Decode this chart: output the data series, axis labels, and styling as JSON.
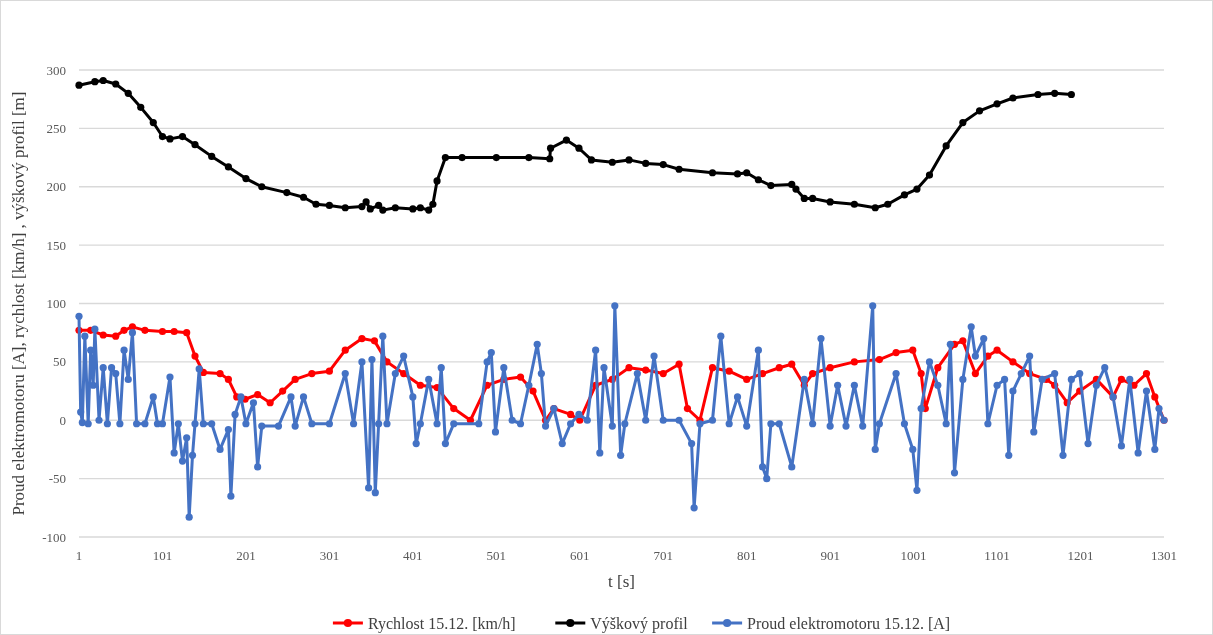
{
  "chart_data": {
    "type": "line",
    "xlabel": "t [s]",
    "ylabel": "Proud elektromotoru [A], rychlost [km/h] , výškový profil  [m]",
    "xlim": [
      1,
      1301
    ],
    "xticks": [
      1,
      101,
      201,
      301,
      401,
      501,
      601,
      701,
      801,
      901,
      1001,
      1101,
      1201,
      1301
    ],
    "ylim": [
      -100,
      300
    ],
    "yticks": [
      -100,
      -50,
      0,
      50,
      100,
      150,
      200,
      250,
      300
    ],
    "grid": "y",
    "legend": "bottom",
    "marker": "circle",
    "line_style": "solid",
    "series": [
      {
        "name": "Rychlost 15.12. [km/h]",
        "color": "#ff0000",
        "x": [
          1,
          15,
          30,
          45,
          55,
          65,
          80,
          101,
          115,
          130,
          140,
          150,
          170,
          180,
          190,
          200,
          215,
          230,
          245,
          260,
          280,
          301,
          320,
          340,
          355,
          370,
          390,
          410,
          430,
          450,
          470,
          490,
          510,
          530,
          545,
          560,
          570,
          590,
          601,
          620,
          640,
          660,
          680,
          701,
          720,
          730,
          745,
          760,
          780,
          801,
          820,
          840,
          855,
          870,
          880,
          901,
          930,
          960,
          980,
          1000,
          1010,
          1015,
          1030,
          1050,
          1060,
          1075,
          1090,
          1101,
          1120,
          1140,
          1160,
          1170,
          1185,
          1200,
          1220,
          1240,
          1250,
          1265,
          1280,
          1290,
          1301
        ],
        "values": [
          77,
          77,
          73,
          72,
          77,
          80,
          77,
          76,
          76,
          75,
          55,
          41,
          40,
          35,
          20,
          18,
          22,
          15,
          25,
          35,
          40,
          42,
          60,
          70,
          68,
          50,
          40,
          30,
          28,
          10,
          0,
          30,
          35,
          37,
          25,
          0,
          10,
          5,
          0,
          30,
          35,
          45,
          43,
          40,
          48,
          10,
          0,
          45,
          42,
          35,
          40,
          45,
          48,
          30,
          40,
          45,
          50,
          52,
          58,
          60,
          40,
          10,
          45,
          65,
          68,
          40,
          55,
          60,
          50,
          40,
          35,
          30,
          15,
          25,
          35,
          20,
          35,
          30,
          40,
          20,
          0
        ]
      },
      {
        "name": "Výškový profil",
        "color": "#000000",
        "x": [
          1,
          20,
          30,
          45,
          60,
          75,
          90,
          101,
          110,
          125,
          140,
          160,
          180,
          201,
          220,
          250,
          270,
          285,
          301,
          320,
          340,
          345,
          350,
          360,
          365,
          380,
          401,
          410,
          420,
          425,
          430,
          440,
          460,
          501,
          540,
          565,
          566,
          585,
          600,
          615,
          640,
          660,
          680,
          701,
          720,
          760,
          790,
          801,
          815,
          830,
          855,
          860,
          870,
          880,
          901,
          930,
          955,
          970,
          990,
          1005,
          1020,
          1040,
          1060,
          1080,
          1101,
          1120,
          1150,
          1170,
          1190
        ],
        "values": [
          287,
          290,
          291,
          288,
          280,
          268,
          255,
          243,
          241,
          243,
          236,
          226,
          217,
          207,
          200,
          195,
          191,
          185,
          184,
          182,
          183,
          187,
          181,
          184,
          180,
          182,
          181,
          182,
          180,
          185,
          205,
          225,
          225,
          225,
          225,
          224,
          233,
          240,
          233,
          223,
          221,
          223,
          220,
          219,
          215,
          212,
          211,
          212,
          206,
          201,
          202,
          198,
          190,
          190,
          187,
          185,
          182,
          185,
          193,
          198,
          210,
          235,
          255,
          265,
          271,
          276,
          279,
          280,
          279
        ]
      },
      {
        "name": "Proud elektromotoru 15.12. [A]",
        "color": "#4472c4",
        "x": [
          1,
          3,
          5,
          8,
          12,
          15,
          18,
          20,
          25,
          30,
          35,
          40,
          45,
          50,
          55,
          60,
          65,
          70,
          80,
          90,
          95,
          101,
          110,
          115,
          120,
          125,
          130,
          133,
          137,
          140,
          145,
          150,
          160,
          170,
          180,
          183,
          188,
          195,
          201,
          210,
          215,
          220,
          240,
          255,
          260,
          270,
          280,
          301,
          320,
          330,
          340,
          348,
          352,
          356,
          360,
          365,
          370,
          380,
          390,
          401,
          405,
          410,
          420,
          430,
          435,
          440,
          450,
          480,
          490,
          495,
          500,
          510,
          520,
          530,
          540,
          550,
          555,
          560,
          570,
          580,
          590,
          600,
          610,
          620,
          625,
          630,
          640,
          643,
          650,
          655,
          670,
          680,
          690,
          701,
          720,
          735,
          738,
          745,
          760,
          770,
          780,
          790,
          801,
          815,
          820,
          825,
          830,
          840,
          855,
          870,
          880,
          890,
          901,
          910,
          920,
          930,
          940,
          952,
          955,
          960,
          980,
          990,
          1000,
          1005,
          1010,
          1020,
          1030,
          1040,
          1045,
          1050,
          1060,
          1070,
          1075,
          1085,
          1090,
          1101,
          1110,
          1115,
          1120,
          1130,
          1140,
          1145,
          1155,
          1170,
          1180,
          1190,
          1200,
          1210,
          1220,
          1230,
          1240,
          1250,
          1260,
          1270,
          1280,
          1290,
          1295,
          1301
        ],
        "values": [
          89,
          7,
          -2,
          72,
          -3,
          60,
          30,
          78,
          0,
          45,
          -3,
          45,
          40,
          -3,
          60,
          35,
          75,
          -3,
          -3,
          20,
          -3,
          -3,
          37,
          -28,
          -3,
          -35,
          -15,
          -83,
          -30,
          -3,
          44,
          -3,
          -3,
          -25,
          -8,
          -65,
          5,
          20,
          -3,
          15,
          -40,
          -5,
          -5,
          20,
          -5,
          20,
          -3,
          -3,
          40,
          -3,
          50,
          -58,
          52,
          -62,
          -3,
          72,
          -3,
          40,
          55,
          20,
          -20,
          -3,
          35,
          -3,
          45,
          -20,
          -3,
          -3,
          50,
          58,
          -10,
          45,
          0,
          -3,
          30,
          65,
          40,
          -5,
          10,
          -20,
          -3,
          5,
          0,
          60,
          -28,
          45,
          -5,
          98,
          -30,
          -3,
          40,
          0,
          55,
          0,
          0,
          -20,
          -75,
          -3,
          0,
          72,
          -3,
          20,
          -5,
          60,
          -40,
          -50,
          -3,
          -3,
          -40,
          35,
          -3,
          70,
          -5,
          30,
          -5,
          30,
          -5,
          98,
          -25,
          -3,
          40,
          -3,
          -25,
          -60,
          10,
          50,
          30,
          -3,
          65,
          -45,
          35,
          80,
          55,
          70,
          -3,
          30,
          35,
          -30,
          25,
          40,
          55,
          -10,
          35,
          40,
          -30,
          35,
          40,
          -20,
          30,
          45,
          20,
          -22,
          35,
          -28,
          25,
          -25,
          10,
          0
        ]
      }
    ]
  }
}
